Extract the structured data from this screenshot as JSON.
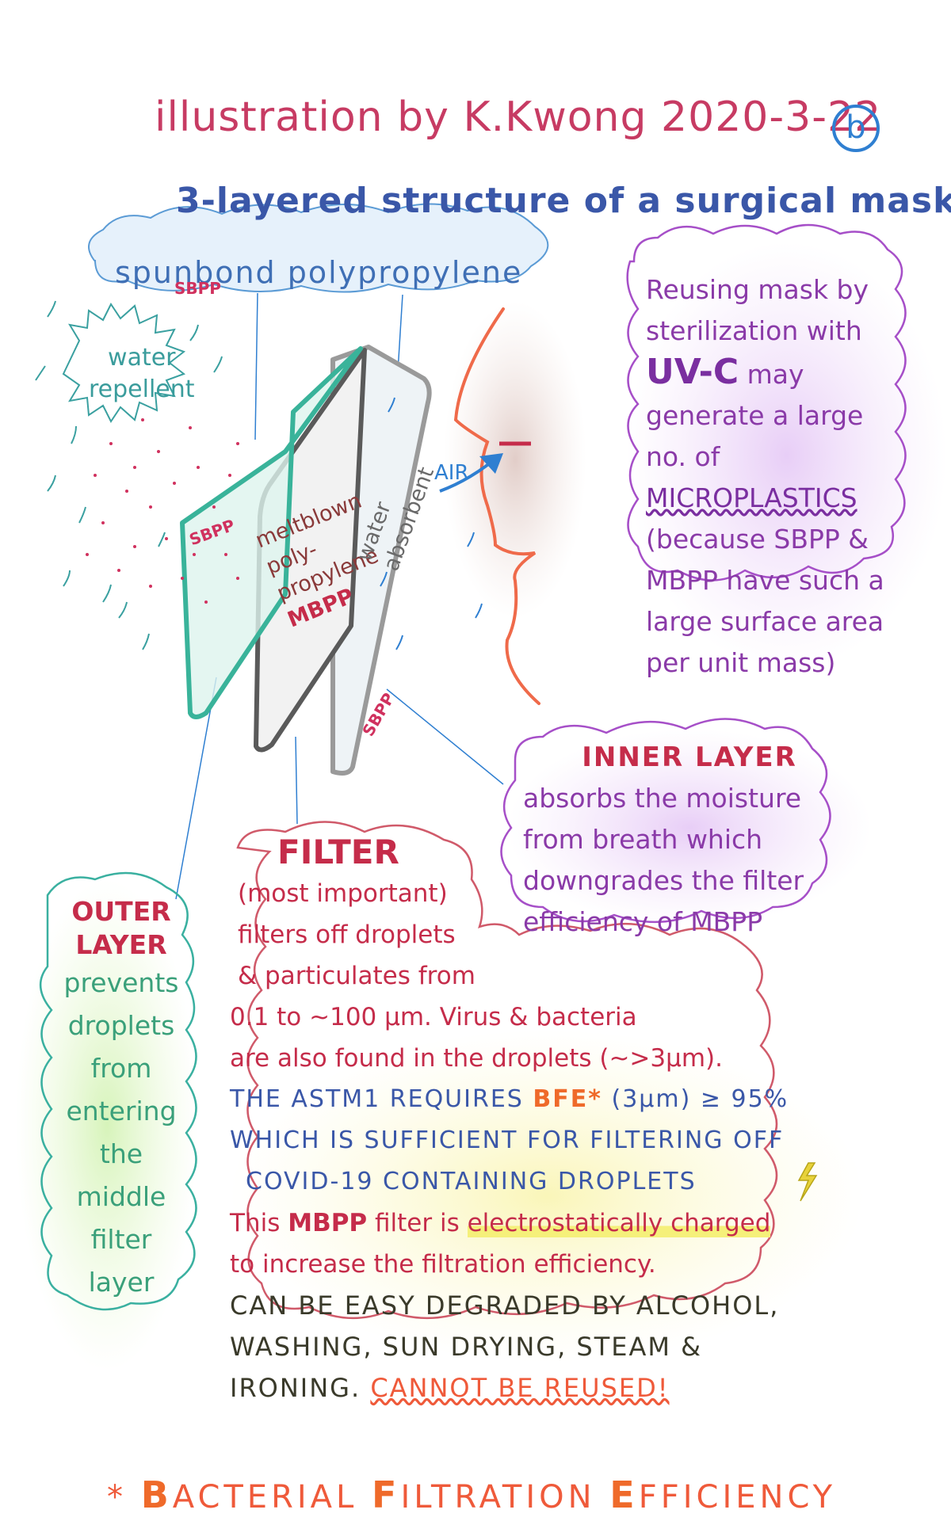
{
  "header": {
    "title": "illustration by K.Kwong 2020-3-22",
    "badge": "b",
    "subtitle": "3-layered structure of a surgical mask"
  },
  "sbpp_cloud": {
    "label": "spunbond polypropylene",
    "abbr": "SBPP"
  },
  "water_repellent": [
    "water",
    "repellent"
  ],
  "air_label": "AIR",
  "layers": {
    "outer_tag": "SBPP",
    "middle_text": [
      "meltblown",
      "poly-",
      "propylene"
    ],
    "middle_tag": "MBPP",
    "inner_text": [
      "water",
      "absorbent"
    ],
    "inner_tag": "SBPP"
  },
  "reuse_note": {
    "line1": "Reusing mask by",
    "line2": "sterilization with",
    "uvc": "UV-C",
    "line3": "may",
    "line4": "generate a large",
    "line5_pre": "no. of",
    "line5_micro": "MICROPLASTICS",
    "line6": "(because SBPP &",
    "line7": "MBPP have such a",
    "line8": "large surface area",
    "line9": "per unit mass)"
  },
  "inner_layer": {
    "heading": "INNER LAYER",
    "lines": [
      "absorbs the moisture",
      "from breath which",
      "downgrades the filter",
      "efficiency of MBPP"
    ]
  },
  "outer_layer": {
    "heading1": "OUTER",
    "heading2": "LAYER",
    "lines": [
      "prevents",
      "droplets",
      "from",
      "entering",
      "the",
      "middle",
      "filter",
      "layer"
    ]
  },
  "filter": {
    "heading": "FILTER",
    "l1": "(most important)",
    "l2": "filters off droplets",
    "l3": "& particulates from",
    "l4": "0.1 to ~100 μm. Virus & bacteria",
    "l5": "are also found in the droplets (~>3μm).",
    "l6_pre": "THE ASTM1 REQUIRES",
    "l6_bfe": "BFE*",
    "l6_post": "(3μm) ≥ 95%",
    "l7": "WHICH IS SUFFICIENT FOR FILTERING OFF",
    "l8": "COVID-19 CONTAINING DROPLETS",
    "l9_pre": "This",
    "l9_mbpp": "MBPP",
    "l9_mid": "filter is",
    "l9_elec": "electrostatically charged",
    "l10": "to increase the filtration efficiency.",
    "l11": "CAN BE EASY DEGRADED BY ALCOHOL,",
    "l12": "WASHING, SUN DRYING, STEAM &",
    "l13_pre": "IRONING.",
    "l13_warn": "CANNOT BE REUSED!"
  },
  "footnote": {
    "star": "*",
    "b": "B",
    "b_rest": "ACTERIAL",
    "f": "F",
    "f_rest": "ILTRATION",
    "e": "E",
    "e_rest": "FFICIENCY"
  },
  "colors": {
    "title": "#c73b63",
    "subtitle": "#3a57a8",
    "purple": "#8a3aa8",
    "red": "#c52c4a",
    "green": "#3aa07a",
    "orange": "#ef5a3a"
  }
}
